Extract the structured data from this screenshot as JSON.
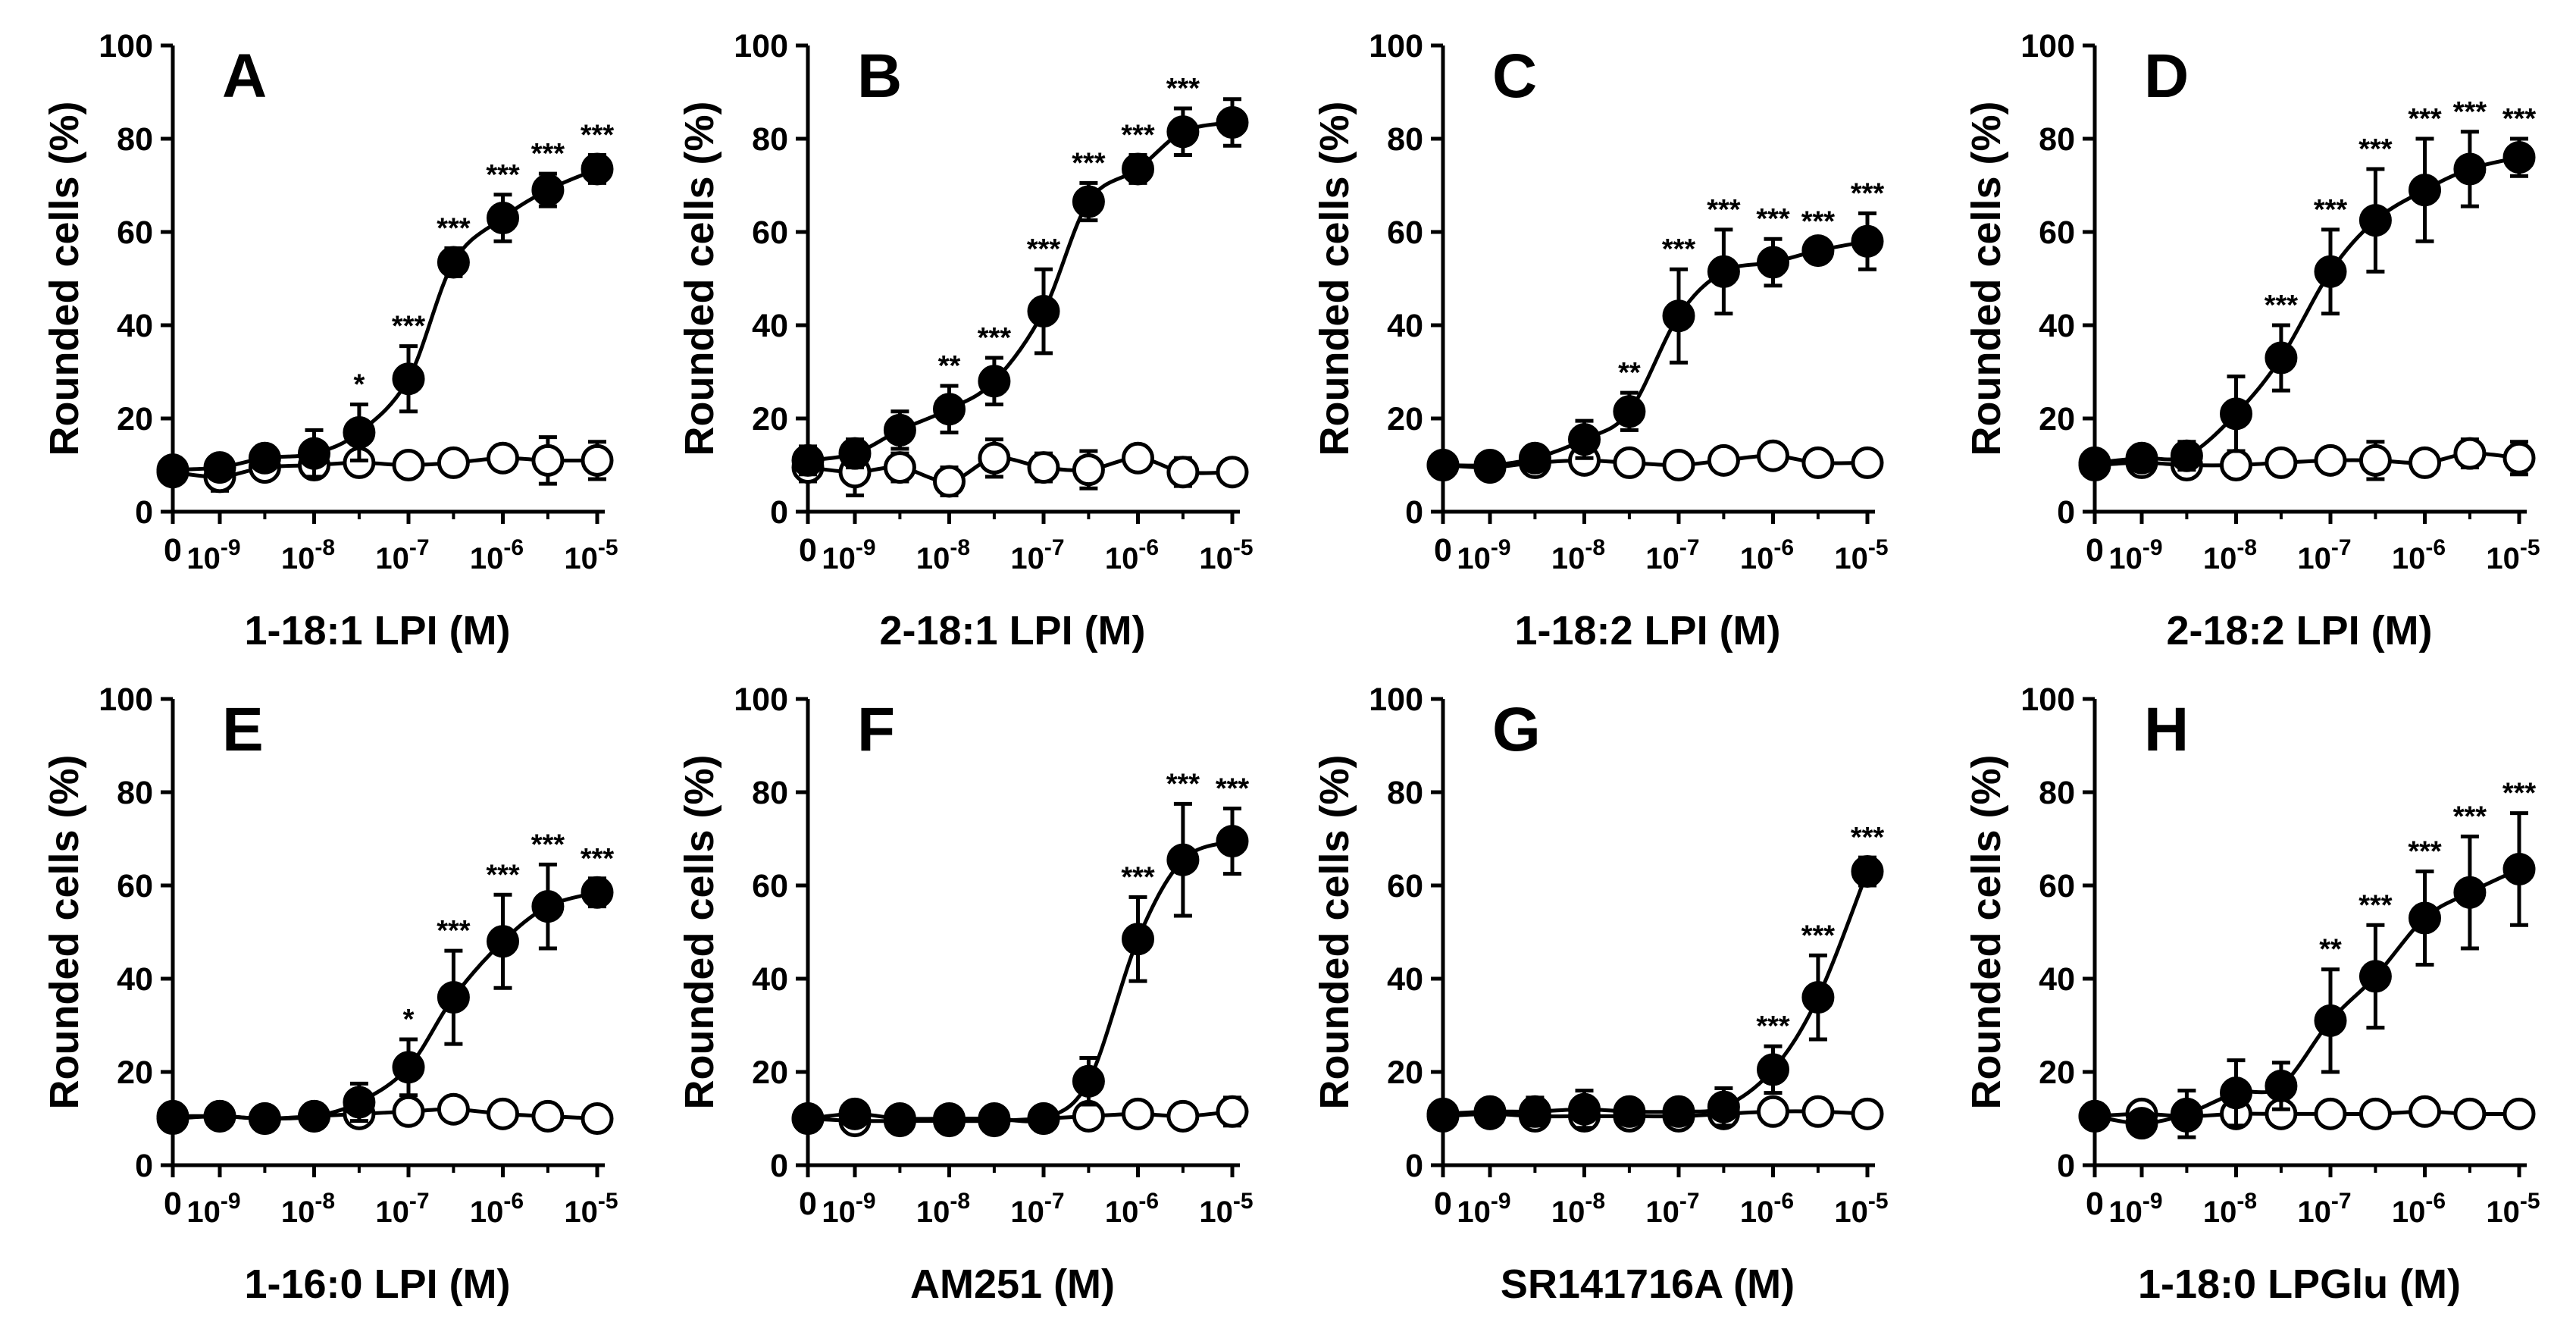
{
  "y_axis_label": "Rounded cells (%)",
  "y_ticks": [
    0,
    20,
    40,
    60,
    80,
    100
  ],
  "x_tick_labels": [
    {
      "base": "0",
      "exp": ""
    },
    {
      "base": "10",
      "exp": "-9"
    },
    {
      "base": "10",
      "exp": "-8"
    },
    {
      "base": "10",
      "exp": "-7"
    },
    {
      "base": "10",
      "exp": "-6"
    },
    {
      "base": "10",
      "exp": "-5"
    }
  ],
  "chart_data": [
    {
      "type": "scatter",
      "panel": "A",
      "xlabel": "1-18:1 LPI (M)",
      "ylabel": "Rounded cells (%)",
      "ylim": [
        0,
        100
      ],
      "x_scale": "log",
      "x_zero_category": true,
      "x": [
        0,
        1e-09,
        3e-09,
        1e-08,
        3e-08,
        1e-07,
        3e-07,
        1e-06,
        3e-06,
        1e-05
      ],
      "series": [
        {
          "marker": "filled",
          "y": [
            9,
            9.5,
            11.5,
            12.5,
            17,
            28.5,
            53.5,
            63,
            69,
            73.5
          ],
          "err": [
            2,
            2,
            2.5,
            5,
            6,
            7,
            3,
            5,
            3.5,
            3
          ],
          "sig": [
            "",
            "",
            "",
            "",
            "*",
            "***",
            "***",
            "***",
            "***",
            "***"
          ]
        },
        {
          "marker": "open",
          "y": [
            8.5,
            7.5,
            9.5,
            10,
            10.5,
            10,
            10.5,
            11.5,
            11,
            11
          ],
          "err": [
            2,
            3,
            2,
            2.5,
            2,
            1.5,
            1.5,
            2,
            5,
            4
          ]
        }
      ]
    },
    {
      "type": "scatter",
      "panel": "B",
      "xlabel": "2-18:1 LPI (M)",
      "ylabel": "Rounded cells (%)",
      "ylim": [
        0,
        100
      ],
      "x_scale": "log",
      "x_zero_category": true,
      "x": [
        0,
        1e-09,
        3e-09,
        1e-08,
        3e-08,
        1e-07,
        3e-07,
        1e-06,
        3e-06,
        1e-05
      ],
      "series": [
        {
          "marker": "filled",
          "y": [
            11,
            12.5,
            17.5,
            22,
            28,
            43,
            66.5,
            73.5,
            81.5,
            83.5
          ],
          "err": [
            3,
            3,
            4,
            5,
            5,
            9,
            4,
            3,
            5,
            5
          ],
          "sig": [
            "",
            "",
            "",
            "**",
            "***",
            "***",
            "***",
            "***",
            "***",
            ""
          ]
        },
        {
          "marker": "open",
          "y": [
            9.5,
            8.5,
            9.5,
            6.5,
            11.5,
            9.5,
            9,
            11.5,
            8.5,
            8.5
          ],
          "err": [
            3,
            5,
            3,
            3,
            4,
            3,
            4,
            2,
            3,
            2
          ]
        }
      ]
    },
    {
      "type": "scatter",
      "panel": "C",
      "xlabel": "1-18:2 LPI (M)",
      "ylabel": "Rounded cells (%)",
      "ylim": [
        0,
        100
      ],
      "x_scale": "log",
      "x_zero_category": true,
      "x": [
        0,
        1e-09,
        3e-09,
        1e-08,
        3e-08,
        1e-07,
        3e-07,
        1e-06,
        3e-06,
        1e-05
      ],
      "series": [
        {
          "marker": "filled",
          "y": [
            10,
            10,
            11.5,
            15.5,
            21.5,
            42,
            51.5,
            53.5,
            56,
            58
          ],
          "err": [
            1.5,
            1.5,
            2,
            4,
            4,
            10,
            9,
            5,
            2,
            6
          ],
          "sig": [
            "",
            "",
            "",
            "",
            "**",
            "***",
            "***",
            "***",
            "***",
            "***"
          ]
        },
        {
          "marker": "open",
          "y": [
            10,
            9.5,
            10.5,
            11,
            10.5,
            10,
            11,
            12,
            10.5,
            10.5
          ],
          "err": [
            1,
            1,
            2,
            2,
            1.5,
            1,
            1,
            2,
            1.5,
            1
          ]
        }
      ]
    },
    {
      "type": "scatter",
      "panel": "D",
      "xlabel": "2-18:2 LPI (M)",
      "ylabel": "Rounded cells (%)",
      "ylim": [
        0,
        100
      ],
      "x_scale": "log",
      "x_zero_category": true,
      "x": [
        0,
        1e-09,
        3e-09,
        1e-08,
        3e-08,
        1e-07,
        3e-07,
        1e-06,
        3e-06,
        1e-05
      ],
      "series": [
        {
          "marker": "filled",
          "y": [
            10.5,
            11.5,
            12,
            21,
            33,
            51.5,
            62.5,
            69,
            73.5,
            76
          ],
          "err": [
            1.5,
            2,
            3,
            8,
            7,
            9,
            11,
            11,
            8,
            4
          ],
          "sig": [
            "",
            "",
            "",
            "",
            "***",
            "***",
            "***",
            "***",
            "***",
            "***"
          ]
        },
        {
          "marker": "open",
          "y": [
            10,
            10.5,
            10,
            10,
            10.5,
            11,
            11,
            10.5,
            12.5,
            11.5
          ],
          "err": [
            1,
            1,
            1.5,
            1,
            1,
            1.5,
            4,
            1.5,
            3,
            3.5
          ]
        }
      ]
    },
    {
      "type": "scatter",
      "panel": "E",
      "xlabel": "1-16:0 LPI (M)",
      "ylabel": "Rounded cells (%)",
      "ylim": [
        0,
        100
      ],
      "x_scale": "log",
      "x_zero_category": true,
      "x": [
        0,
        1e-09,
        3e-09,
        1e-08,
        3e-08,
        1e-07,
        3e-07,
        1e-06,
        3e-06,
        1e-05
      ],
      "series": [
        {
          "marker": "filled",
          "y": [
            10.5,
            10.5,
            10,
            10.5,
            13.5,
            21,
            36,
            48,
            55.5,
            58.5
          ],
          "err": [
            1,
            1.5,
            1.5,
            1.5,
            4,
            6,
            10,
            10,
            9,
            3
          ],
          "sig": [
            "",
            "",
            "",
            "",
            "",
            "*",
            "***",
            "***",
            "***",
            "***"
          ]
        },
        {
          "marker": "open",
          "y": [
            10,
            10.5,
            10,
            10.5,
            11,
            11.5,
            12,
            11,
            10.5,
            10
          ],
          "err": [
            1,
            1,
            1,
            1,
            1.5,
            1.5,
            1.5,
            1,
            1,
            1
          ]
        }
      ]
    },
    {
      "type": "scatter",
      "panel": "F",
      "xlabel": "AM251 (M)",
      "ylabel": "Rounded cells (%)",
      "ylim": [
        0,
        100
      ],
      "x_scale": "log",
      "x_zero_category": true,
      "x": [
        0,
        1e-09,
        3e-09,
        1e-08,
        3e-08,
        1e-07,
        3e-07,
        1e-06,
        3e-06,
        1e-05
      ],
      "series": [
        {
          "marker": "filled",
          "y": [
            10,
            11,
            10,
            10,
            10,
            10,
            18,
            48.5,
            65.5,
            69.5
          ],
          "err": [
            1,
            1.5,
            1,
            1,
            1,
            1.5,
            5,
            9,
            12,
            7
          ],
          "sig": [
            "",
            "",
            "",
            "",
            "",
            "",
            "",
            "***",
            "***",
            "***"
          ]
        },
        {
          "marker": "open",
          "y": [
            10,
            9.5,
            9.5,
            9.5,
            9.5,
            10,
            10.5,
            11,
            10.5,
            11.5
          ],
          "err": [
            1,
            1,
            1,
            1,
            1,
            1,
            1.5,
            1,
            2,
            3
          ]
        }
      ]
    },
    {
      "type": "scatter",
      "panel": "G",
      "xlabel": "SR141716A (M)",
      "ylabel": "Rounded cells (%)",
      "ylim": [
        0,
        100
      ],
      "x_scale": "log",
      "x_zero_category": true,
      "x": [
        0,
        1e-09,
        3e-09,
        1e-08,
        3e-08,
        1e-07,
        3e-07,
        1e-06,
        3e-06,
        1e-05
      ],
      "series": [
        {
          "marker": "filled",
          "y": [
            11,
            11.5,
            11.5,
            12,
            11.5,
            11.5,
            12.5,
            20.5,
            36,
            63
          ],
          "err": [
            1.5,
            2,
            3,
            4,
            2,
            2,
            4,
            5,
            9,
            3
          ],
          "sig": [
            "",
            "",
            "",
            "",
            "",
            "",
            "",
            "***",
            "***",
            "***"
          ]
        },
        {
          "marker": "open",
          "y": [
            10.5,
            11,
            10.5,
            10.5,
            10.5,
            10.5,
            11,
            11.5,
            11.5,
            11
          ],
          "err": [
            1,
            1,
            1,
            1,
            1,
            1,
            1,
            1,
            1,
            1
          ]
        }
      ]
    },
    {
      "type": "scatter",
      "panel": "H",
      "xlabel": "1-18:0 LPGlu (M)",
      "ylabel": "Rounded cells (%)",
      "ylim": [
        0,
        100
      ],
      "x_scale": "log",
      "x_zero_category": true,
      "x": [
        0,
        1e-09,
        3e-09,
        1e-08,
        3e-08,
        1e-07,
        3e-07,
        1e-06,
        3e-06,
        1e-05
      ],
      "series": [
        {
          "marker": "filled",
          "y": [
            10.5,
            9,
            11,
            15.5,
            17,
            31,
            40.5,
            53,
            58.5,
            63.5
          ],
          "err": [
            1,
            1.5,
            5,
            7,
            5,
            11,
            11,
            10,
            12,
            12
          ],
          "sig": [
            "",
            "",
            "",
            "",
            "",
            "**",
            "***",
            "***",
            "***",
            "***"
          ]
        },
        {
          "marker": "open",
          "y": [
            10.5,
            11,
            10.5,
            11,
            11,
            11,
            11,
            11.5,
            11,
            11
          ],
          "err": [
            1,
            1,
            1,
            1,
            1,
            1,
            1,
            1,
            1,
            1
          ]
        }
      ]
    }
  ]
}
